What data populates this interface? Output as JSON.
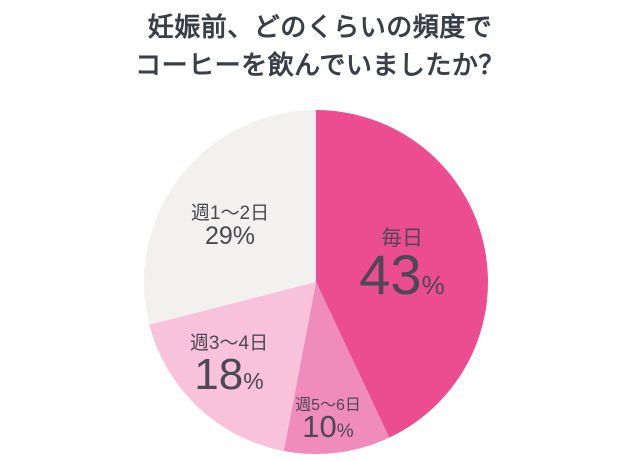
{
  "title": {
    "line1": "妊娠前、どのくらいの頻度で",
    "line2": "コーヒーを飲んでいましたか？"
  },
  "percent_sign": "%",
  "chart_data": {
    "type": "pie",
    "title": "妊娠前、どのくらいの頻度でコーヒーを飲んでいましたか？",
    "start_angle_deg": 0,
    "direction": "clockwise",
    "legend": "none",
    "label_style": "inside",
    "slices": [
      {
        "label": "毎日",
        "value_pct": 43,
        "color": "#ec4d91"
      },
      {
        "label": "週5〜6日",
        "value_pct": 10,
        "color": "#f08cbc"
      },
      {
        "label": "週3〜4日",
        "value_pct": 18,
        "color": "#f7c2da"
      },
      {
        "label": "週1〜2日",
        "value_pct": 29,
        "color": "#f2f1f0"
      }
    ]
  }
}
